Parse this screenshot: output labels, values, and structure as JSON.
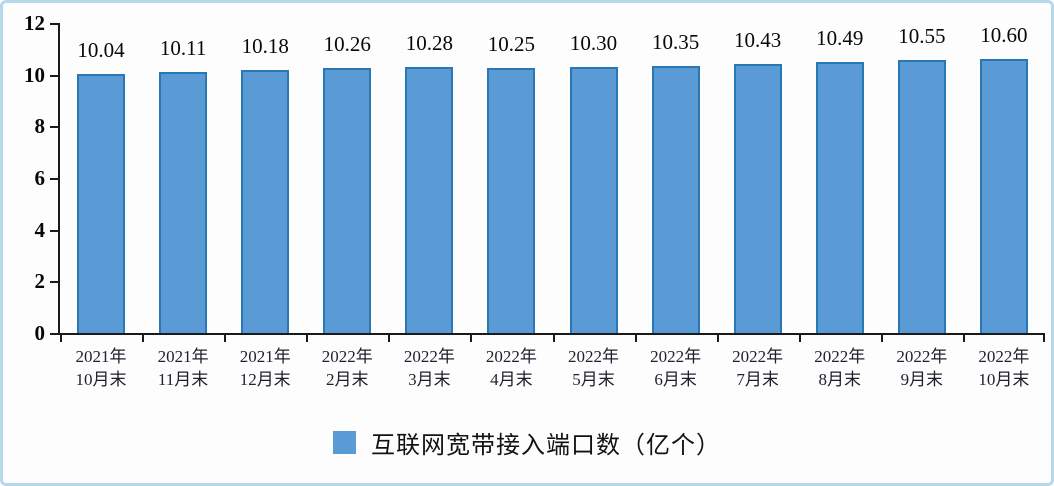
{
  "chart_data": {
    "type": "bar",
    "title": "",
    "legend": "互联网宽带接入端口数（亿个）",
    "categories": [
      {
        "line1": "2021年",
        "line2": "10月末"
      },
      {
        "line1": "2021年",
        "line2": "11月末"
      },
      {
        "line1": "2021年",
        "line2": "12月末"
      },
      {
        "line1": "2022年",
        "line2": "2月末"
      },
      {
        "line1": "2022年",
        "line2": "3月末"
      },
      {
        "line1": "2022年",
        "line2": "4月末"
      },
      {
        "line1": "2022年",
        "line2": "5月末"
      },
      {
        "line1": "2022年",
        "line2": "6月末"
      },
      {
        "line1": "2022年",
        "line2": "7月末"
      },
      {
        "line1": "2022年",
        "line2": "8月末"
      },
      {
        "line1": "2022年",
        "line2": "9月末"
      },
      {
        "line1": "2022年",
        "line2": "10月末"
      }
    ],
    "values": [
      10.04,
      10.11,
      10.18,
      10.26,
      10.28,
      10.25,
      10.3,
      10.35,
      10.43,
      10.49,
      10.55,
      10.6
    ],
    "value_labels": [
      "10.04",
      "10.11",
      "10.18",
      "10.26",
      "10.28",
      "10.25",
      "10.30",
      "10.35",
      "10.43",
      "10.49",
      "10.55",
      "10.60"
    ],
    "xlabel": "",
    "ylabel": "",
    "ylim": [
      0,
      12
    ],
    "yticks": [
      0,
      2,
      4,
      6,
      8,
      10,
      12
    ],
    "grid": false,
    "legend_position": "bottom-center",
    "colors": {
      "bar_fill": "#5b9bd5",
      "bar_border": "#2878b5",
      "axis": "#1a1a1a",
      "frame_border": "#b5d9ea",
      "background": "#fdfdfd"
    }
  }
}
